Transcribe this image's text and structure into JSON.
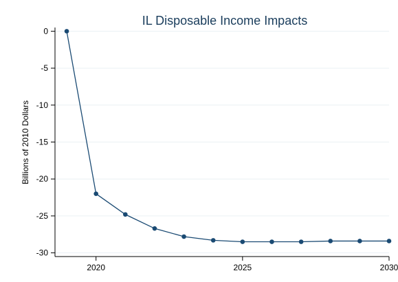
{
  "colors": {
    "series": "#1a4a73",
    "title": "#1a3d5c",
    "grid": "#eaf0f4",
    "background": "#ffffff"
  },
  "chart_data": {
    "type": "line",
    "title": "IL Disposable Income Impacts",
    "xlabel": "",
    "ylabel": "Billions of 2010 Dollars",
    "x": [
      2019,
      2020,
      2021,
      2022,
      2023,
      2024,
      2025,
      2026,
      2027,
      2028,
      2029,
      2030
    ],
    "series": [
      {
        "values": [
          0,
          -22.0,
          -24.8,
          -26.7,
          -27.8,
          -28.3,
          -28.5,
          -28.5,
          -28.5,
          -28.4,
          -28.4,
          -28.4
        ],
        "marker": "circle"
      }
    ],
    "xlim": [
      2018.6,
      2030
    ],
    "ylim": [
      -30.5,
      0.5
    ],
    "xticks": [
      2020,
      2025,
      2030
    ],
    "yticks": [
      0,
      -5,
      -10,
      -15,
      -20,
      -25,
      -30
    ],
    "grid": true,
    "legend": "none"
  }
}
